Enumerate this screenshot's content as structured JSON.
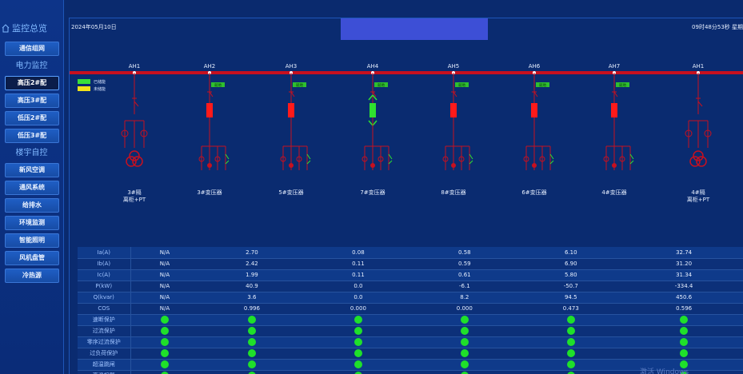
{
  "sidebar": {
    "monitor_title": "监控总览",
    "comm_btn": "通信组网",
    "power_group": "电力监控",
    "power_items": [
      "高压2#配",
      "高压3#配",
      "低压2#配",
      "低压3#配"
    ],
    "building_group": "楼宇自控",
    "building_items": [
      "新风空调",
      "通风系统",
      "给排水",
      "环境监测",
      "智能照明",
      "风机盘管",
      "冷热源"
    ]
  },
  "header": {
    "date": "2024年05月10日",
    "time": "09时48分53秒  星期"
  },
  "diagram": {
    "bus_color": "#c7101f",
    "legend": [
      {
        "label": "已储能",
        "color": "#3adf3a"
      },
      {
        "label": "未储能",
        "color": "#f2e21a"
      }
    ],
    "bays": [
      {
        "id": "AH1",
        "name": "3#隔离柜+PT",
        "type": "pt"
      },
      {
        "id": "AH2",
        "name": "3#变压器",
        "type": "breaker",
        "state": "red",
        "tag": "就地"
      },
      {
        "id": "AH3",
        "name": "5#变压器",
        "type": "breaker",
        "state": "red",
        "tag": "就地"
      },
      {
        "id": "AH4",
        "name": "7#变压器",
        "type": "breaker",
        "state": "green",
        "tag": "就地"
      },
      {
        "id": "AH5",
        "name": "8#变压器",
        "type": "breaker",
        "state": "red",
        "tag": "就地"
      },
      {
        "id": "AH6",
        "name": "6#变压器",
        "type": "breaker",
        "state": "red",
        "tag": "就地"
      },
      {
        "id": "AH7",
        "name": "4#变压器",
        "type": "breaker",
        "state": "red",
        "tag": "就地"
      },
      {
        "id": "AH1",
        "name": "4#隔离柜+PT",
        "type": "pt"
      }
    ]
  },
  "table": {
    "rows": [
      {
        "label": "Ia(A)",
        "values": [
          "N/A",
          "2.70",
          "0.08",
          "0.58",
          "6.10",
          "32.74"
        ]
      },
      {
        "label": "Ib(A)",
        "values": [
          "N/A",
          "2.42",
          "0.11",
          "0.59",
          "6.90",
          "31.20"
        ]
      },
      {
        "label": "Ic(A)",
        "values": [
          "N/A",
          "1.99",
          "0.11",
          "0.61",
          "5.80",
          "31.34"
        ]
      },
      {
        "label": "P(kW)",
        "values": [
          "N/A",
          "40.9",
          "0.0",
          "-6.1",
          "-50.7",
          "-334.4"
        ]
      },
      {
        "label": "Q(kvar)",
        "values": [
          "N/A",
          "3.6",
          "0.0",
          "8.2",
          "94.5",
          "450.6"
        ]
      },
      {
        "label": "COS",
        "values": [
          "N/A",
          "0.996",
          "0.000",
          "0.000",
          "0.473",
          "0.596"
        ]
      }
    ],
    "status_rows": [
      "速断保护",
      "过流保护",
      "零序过流保护",
      "过负荷保护",
      "超温跳闸",
      "高温报警"
    ]
  },
  "watermark": "激活 Windows"
}
